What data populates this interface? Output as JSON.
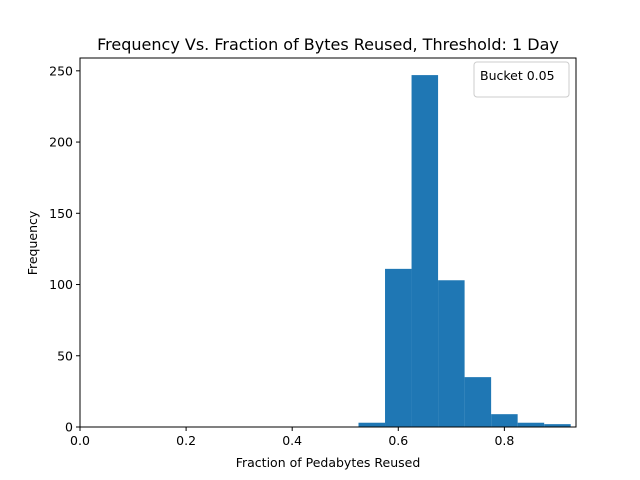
{
  "chart_data": {
    "type": "bar",
    "title": "Frequency Vs. Fraction of Bytes Reused, Threshold: 1 Day",
    "xlabel": "Fraction of Pedabytes Reused",
    "ylabel": "Frequency",
    "xlim": [
      0.0,
      0.935
    ],
    "ylim": [
      0,
      259
    ],
    "xticks": [
      0.0,
      0.2,
      0.4,
      0.6,
      0.8
    ],
    "xtick_labels": [
      "0.0",
      "0.2",
      "0.4",
      "0.6",
      "0.8"
    ],
    "yticks": [
      0,
      50,
      100,
      150,
      200,
      250
    ],
    "ytick_labels": [
      "0",
      "50",
      "100",
      "150",
      "200",
      "250"
    ],
    "legend": {
      "label": "Bucket 0.05",
      "placement": "top-right"
    },
    "bins": [
      {
        "x0": 0.525,
        "x1": 0.575,
        "value": 3
      },
      {
        "x0": 0.575,
        "x1": 0.625,
        "value": 111
      },
      {
        "x0": 0.625,
        "x1": 0.675,
        "value": 247
      },
      {
        "x0": 0.675,
        "x1": 0.725,
        "value": 103
      },
      {
        "x0": 0.725,
        "x1": 0.775,
        "value": 35
      },
      {
        "x0": 0.775,
        "x1": 0.825,
        "value": 9
      },
      {
        "x0": 0.825,
        "x1": 0.875,
        "value": 3
      },
      {
        "x0": 0.875,
        "x1": 0.925,
        "value": 2
      }
    ],
    "bar_color": "#1f77b4",
    "grid": false
  }
}
